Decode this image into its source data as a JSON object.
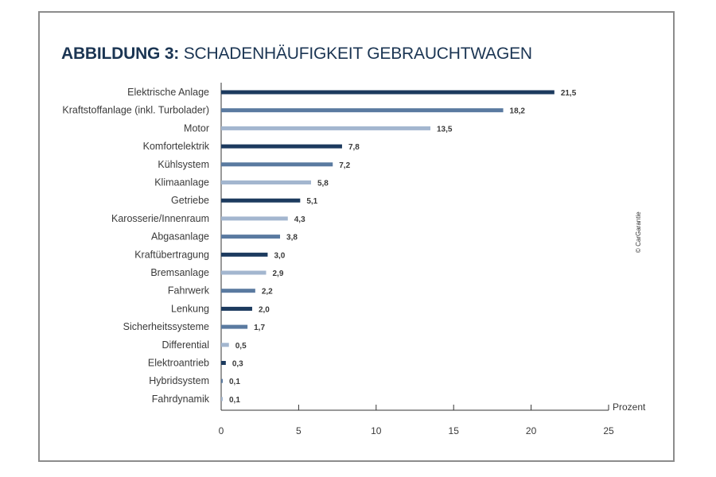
{
  "title": {
    "bold": "ABBILDUNG 3:",
    "rest": "SCHADENHÄUFIGKEIT GEBRAUCHTWAGEN"
  },
  "credit": "© CarGarantie",
  "colors": {
    "title": "#1b3553",
    "dark": "#1c3a5e",
    "medium": "#5a7aa0",
    "light": "#a3b6cf",
    "axis": "#333333",
    "text": "#3a3a3a"
  },
  "chart_data": {
    "type": "bar",
    "orientation": "horizontal",
    "title": "ABBILDUNG 3: SCHADENHÄUFIGKEIT GEBRAUCHTWAGEN",
    "xlabel": "Prozent",
    "xlim": [
      0,
      25
    ],
    "xticks": [
      0,
      5,
      10,
      15,
      20,
      25
    ],
    "grid": false,
    "legend": "none",
    "categories": [
      "Elektrische Anlage",
      "Kraftstoffanlage (inkl. Turbolader)",
      "Motor",
      "Komfortelektrik",
      "Kühlsystem",
      "Klimaanlage",
      "Getriebe",
      "Karosserie/Innenraum",
      "Abgasanlage",
      "Kraftübertragung",
      "Bremsanlage",
      "Fahrwerk",
      "Lenkung",
      "Sicherheitssysteme",
      "Differential",
      "Elektroantrieb",
      "Hybridsystem",
      "Fahrdynamik"
    ],
    "values": [
      21.5,
      18.2,
      13.5,
      7.8,
      7.2,
      5.8,
      5.1,
      4.3,
      3.8,
      3.0,
      2.9,
      2.2,
      2.0,
      1.7,
      0.5,
      0.3,
      0.1,
      0.1
    ],
    "value_labels": [
      "21,5",
      "18,2",
      "13,5",
      "7,8",
      "7,2",
      "5,8",
      "5,1",
      "4,3",
      "3,8",
      "3,0",
      "2,9",
      "2,2",
      "2,0",
      "1,7",
      "0,5",
      "0,3",
      "0,1",
      "0,1"
    ],
    "bar_color_keys": [
      "dark",
      "medium",
      "light",
      "dark",
      "medium",
      "light",
      "dark",
      "light",
      "medium",
      "dark",
      "light",
      "medium",
      "dark",
      "medium",
      "light",
      "dark",
      "medium",
      "light"
    ]
  }
}
